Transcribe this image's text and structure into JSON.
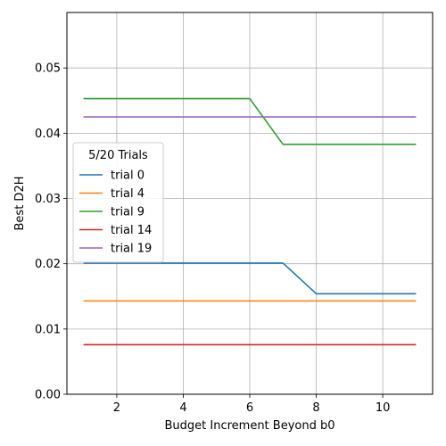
{
  "chart_data": {
    "type": "line",
    "title": "",
    "xlabel": "Budget Increment Beyond b0",
    "ylabel": "Best D2H",
    "xlim": [
      0.5,
      11.5
    ],
    "ylim": [
      0.0,
      0.0585
    ],
    "xticks": [
      2,
      4,
      6,
      8,
      10
    ],
    "yticks": [
      0.0,
      0.01,
      0.02,
      0.03,
      0.04,
      0.05
    ],
    "ytick_labels": [
      "0.00",
      "0.01",
      "0.02",
      "0.03",
      "0.04",
      "0.05"
    ],
    "grid": true,
    "legend": {
      "title": "5/20 Trials",
      "placement": "center-left"
    },
    "x": [
      1,
      2,
      3,
      4,
      5,
      6,
      7,
      8,
      9,
      10,
      11
    ],
    "series": [
      {
        "name": "trial 0",
        "color": "#1f77b4",
        "values": [
          0.0201,
          0.0201,
          0.0201,
          0.0201,
          0.0201,
          0.0201,
          0.0201,
          0.0154,
          0.0154,
          0.0154,
          0.0154
        ]
      },
      {
        "name": "trial 4",
        "color": "#ff7f0e",
        "values": [
          0.0143,
          0.0143,
          0.0143,
          0.0143,
          0.0143,
          0.0143,
          0.0143,
          0.0143,
          0.0143,
          0.0143,
          0.0143
        ]
      },
      {
        "name": "trial 9",
        "color": "#2ca02c",
        "values": [
          0.0453,
          0.0453,
          0.0453,
          0.0453,
          0.0453,
          0.0453,
          0.0383,
          0.0383,
          0.0383,
          0.0383,
          0.0383
        ]
      },
      {
        "name": "trial 14",
        "color": "#d62728",
        "values": [
          0.0076,
          0.0076,
          0.0076,
          0.0076,
          0.0076,
          0.0076,
          0.0076,
          0.0076,
          0.0076,
          0.0076,
          0.0076
        ]
      },
      {
        "name": "trial 19",
        "color": "#9467bd",
        "values": [
          0.0425,
          0.0425,
          0.0425,
          0.0425,
          0.0425,
          0.0425,
          0.0425,
          0.0425,
          0.0425,
          0.0425,
          0.0425
        ]
      }
    ]
  }
}
